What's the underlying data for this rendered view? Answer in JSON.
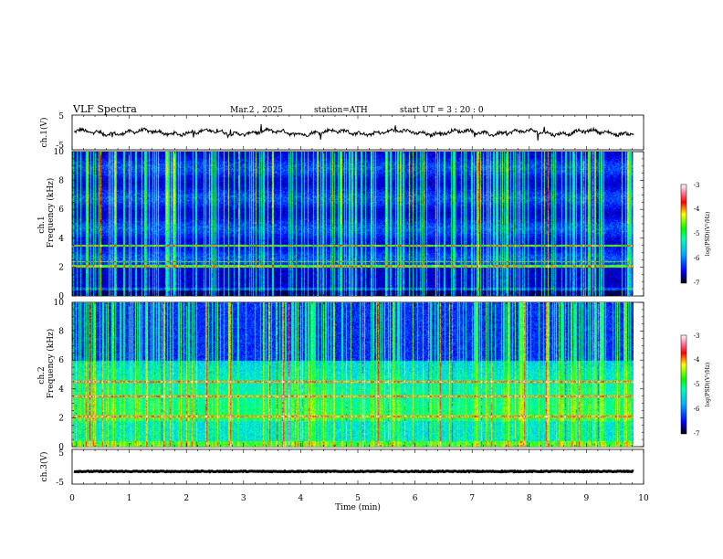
{
  "header": {
    "title": "VLF  Spectra",
    "date": "Mar.2  , 2025",
    "station": "station=ATH",
    "start_ut": "start  UT  =    3  : 20 : 0"
  },
  "chart_data": [
    {
      "id": "ch1-waveform",
      "type": "line",
      "ylabel": "ch.1(V)",
      "ylim": [
        -5,
        5
      ],
      "yticks": [
        "5",
        "-5"
      ],
      "xlim": [
        0,
        10
      ],
      "data_end_min": 9.83,
      "baseline": 0,
      "description_of_values": "noisy waveform around 0 V"
    },
    {
      "id": "ch1-spectrogram",
      "type": "heatmap",
      "ylabel": "ch.1\nFrequency (kHz)",
      "ylabel_top": "ch.1",
      "ylabel_bottom": "Frequency  (kHz)",
      "ylim": [
        0,
        10
      ],
      "yticks": [
        "0",
        "2",
        "4",
        "6",
        "8",
        "10"
      ],
      "xlim": [
        0,
        10
      ],
      "colorbar": {
        "label": "log(PSD)(V²/Hz)",
        "range": [
          -7,
          -3
        ],
        "ticks": [
          "-3",
          "-4",
          "-5",
          "-6",
          "-7"
        ]
      }
    },
    {
      "id": "ch2-spectrogram",
      "type": "heatmap",
      "ylabel_top": "ch.2",
      "ylabel_bottom": "Frequency  (kHz)",
      "ylim": [
        0,
        10
      ],
      "yticks": [
        "0",
        "2",
        "4",
        "6",
        "8",
        "10"
      ],
      "xlim": [
        0,
        10
      ],
      "colorbar": {
        "label": "log(PSD)(V²/Hz)",
        "range": [
          -7,
          -3
        ],
        "ticks": [
          "-3",
          "-4",
          "-5",
          "-6",
          "-7"
        ]
      }
    },
    {
      "id": "ch3-waveform",
      "type": "line",
      "ylabel": "ch.3(V)",
      "ylim": [
        -5,
        5
      ],
      "yticks": [
        "5",
        "-5"
      ],
      "xlim": [
        0,
        10
      ],
      "data_end_min": 9.83,
      "baseline": -1.6
    }
  ],
  "xaxis": {
    "label": "Time  (min)",
    "ticks": [
      "0",
      "1",
      "2",
      "3",
      "4",
      "5",
      "6",
      "7",
      "8",
      "9",
      "10"
    ]
  },
  "colormap": [
    "#000000",
    "#0000a0",
    "#0000ff",
    "#0060ff",
    "#00c0ff",
    "#00ffc0",
    "#00ff40",
    "#80ff00",
    "#ffff00",
    "#ff8000",
    "#ff0000",
    "#ff80a0",
    "#ffffff"
  ]
}
